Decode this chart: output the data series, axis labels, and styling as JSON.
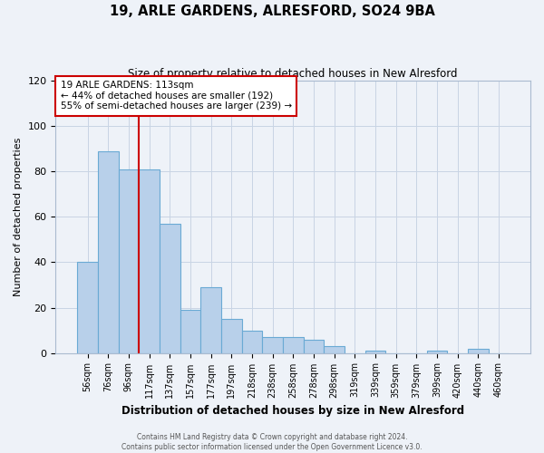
{
  "title": "19, ARLE GARDENS, ALRESFORD, SO24 9BA",
  "subtitle": "Size of property relative to detached houses in New Alresford",
  "xlabel": "Distribution of detached houses by size in New Alresford",
  "ylabel": "Number of detached properties",
  "bar_labels": [
    "56sqm",
    "76sqm",
    "96sqm",
    "117sqm",
    "137sqm",
    "157sqm",
    "177sqm",
    "197sqm",
    "218sqm",
    "238sqm",
    "258sqm",
    "278sqm",
    "298sqm",
    "319sqm",
    "339sqm",
    "359sqm",
    "379sqm",
    "399sqm",
    "420sqm",
    "440sqm",
    "460sqm"
  ],
  "bar_heights": [
    40,
    89,
    81,
    81,
    57,
    19,
    29,
    15,
    10,
    7,
    7,
    6,
    3,
    0,
    1,
    0,
    0,
    1,
    0,
    2,
    0
  ],
  "bar_color": "#b8d0ea",
  "bar_edge_color": "#6aaad4",
  "bar_width": 1.0,
  "vline_x_index": 2.5,
  "vline_color": "#cc0000",
  "annotation_title": "19 ARLE GARDENS: 113sqm",
  "annotation_line1": "← 44% of detached houses are smaller (192)",
  "annotation_line2": "55% of semi-detached houses are larger (239) →",
  "annotation_box_color": "#cc0000",
  "ylim": [
    0,
    120
  ],
  "yticks": [
    0,
    20,
    40,
    60,
    80,
    100,
    120
  ],
  "grid_color": "#c8d4e4",
  "background_color": "#eef2f8",
  "footer1": "Contains HM Land Registry data © Crown copyright and database right 2024.",
  "footer2": "Contains public sector information licensed under the Open Government Licence v3.0."
}
